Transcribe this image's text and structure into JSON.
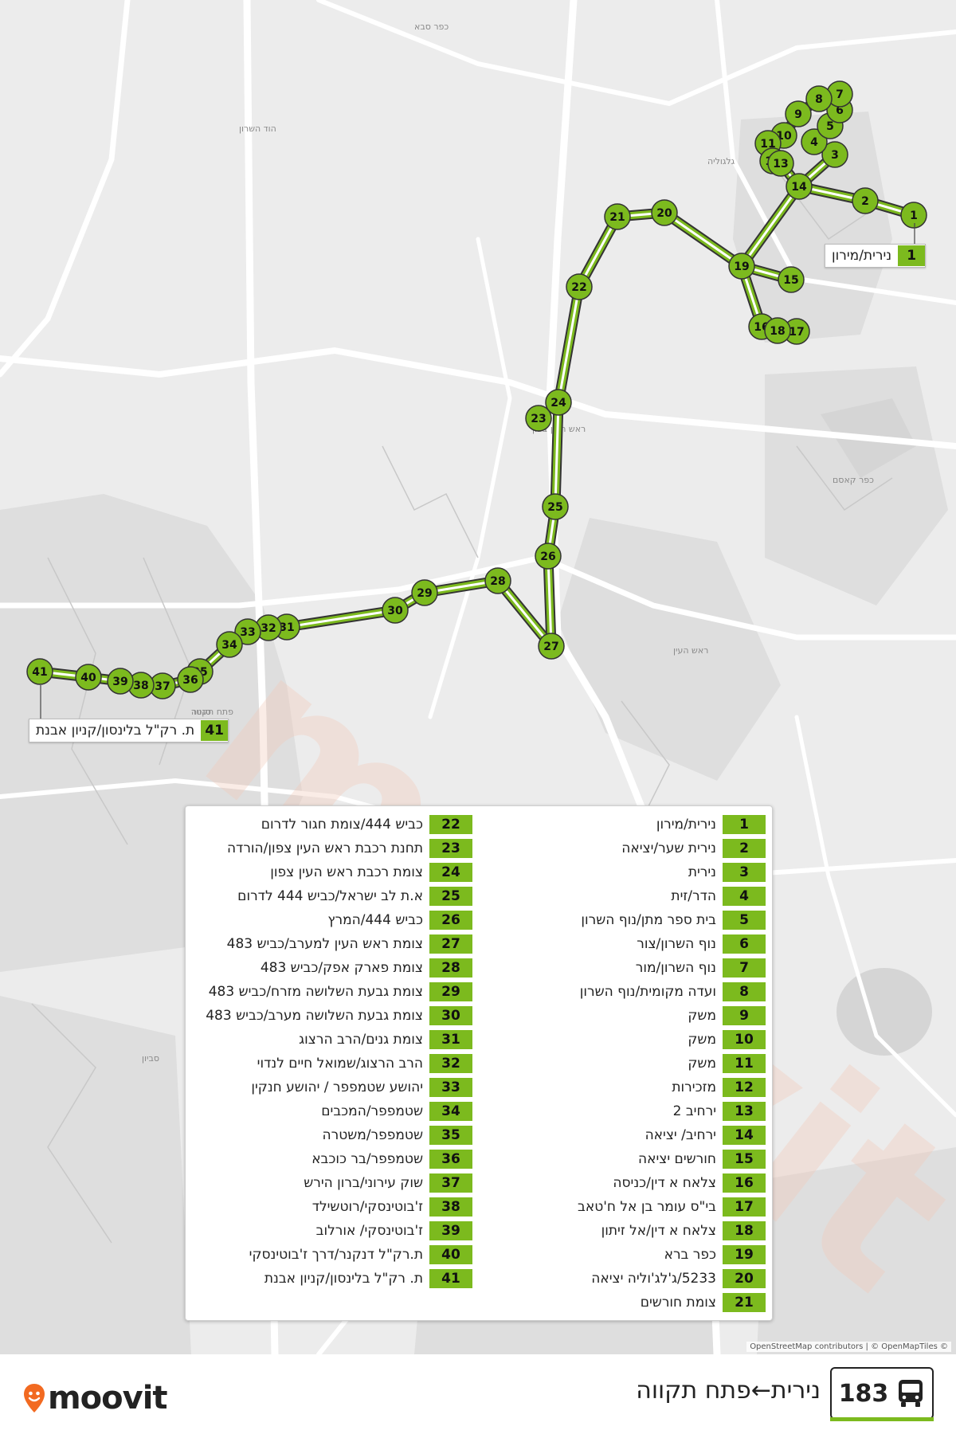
{
  "route": {
    "number": "183",
    "name": "נירית←פתח תקווה",
    "color": "#7cba1e",
    "brand": "moovit",
    "attribution": "OpenStreetMap contributors | © OpenMapTiles ©"
  },
  "map_labels": [
    {
      "text": "גלגוליה",
      "place": "north-east"
    },
    {
      "text": "כפר קאסם",
      "place": "east"
    },
    {
      "text": "ראש העין",
      "place": "center-east"
    },
    {
      "text": "ראש העין צפון",
      "place": "center"
    },
    {
      "text": "פתח תקווה",
      "place": "west"
    },
    {
      "text": "הוד השרון",
      "place": "north-west"
    },
    {
      "text": "כפר סבא",
      "place": "north"
    },
    {
      "text": "סנטר",
      "place": "west"
    },
    {
      "text": "סביון",
      "place": "south-west"
    }
  ],
  "callouts": {
    "start": {
      "num": "1",
      "label": "נירית/מירון"
    },
    "end": {
      "num": "41",
      "label": "ת. רק\"ל בלינסון/קניון אבנת"
    }
  },
  "stops": [
    {
      "num": "1",
      "label": "נירית/מירון"
    },
    {
      "num": "2",
      "label": "נירית שער/יציאה"
    },
    {
      "num": "3",
      "label": "נירית"
    },
    {
      "num": "4",
      "label": "הדר/זית"
    },
    {
      "num": "5",
      "label": "בית ספר מתן/נוף השרון"
    },
    {
      "num": "6",
      "label": "נוף השרון/צור"
    },
    {
      "num": "7",
      "label": "נוף השרון/מור"
    },
    {
      "num": "8",
      "label": "ועדה מקומית/נוף השרון"
    },
    {
      "num": "9",
      "label": "משק"
    },
    {
      "num": "10",
      "label": "משק"
    },
    {
      "num": "11",
      "label": "משק"
    },
    {
      "num": "12",
      "label": "מזכירות"
    },
    {
      "num": "13",
      "label": "ירחיב 2"
    },
    {
      "num": "14",
      "label": "ירחיב/ יציאה"
    },
    {
      "num": "15",
      "label": "חורשים יציאה"
    },
    {
      "num": "16",
      "label": "צלאח א דין/כניסה"
    },
    {
      "num": "17",
      "label": "בי\"ס עומר בן אל ח'טאב"
    },
    {
      "num": "18",
      "label": "צלאח א דין/אל זיתון"
    },
    {
      "num": "19",
      "label": "כפר ברא"
    },
    {
      "num": "20",
      "label": "5233/ג'לג'וליה יציאה"
    },
    {
      "num": "21",
      "label": "צומת חורשים"
    },
    {
      "num": "22",
      "label": "כביש 444/צומת חגור לדרום"
    },
    {
      "num": "23",
      "label": "תחנת רכבת ראש העין צפון/הורדה"
    },
    {
      "num": "24",
      "label": "צומת רכבת ראש העין צפון"
    },
    {
      "num": "25",
      "label": "א.ת לב ישראל/כביש 444 לדרום"
    },
    {
      "num": "26",
      "label": "כביש 444/המרץ"
    },
    {
      "num": "27",
      "label": "צומת ראש העין למערב/כביש 483"
    },
    {
      "num": "28",
      "label": "צומת פארק אפק/כביש 483"
    },
    {
      "num": "29",
      "label": "צומת גבעת השלושה מזרח/כביש 483"
    },
    {
      "num": "30",
      "label": "צומת גבעת השלושה מערב/כביש 483"
    },
    {
      "num": "31",
      "label": "צומת גנים/הרב הרצוג"
    },
    {
      "num": "32",
      "label": "הרב הרצוג/שמואל חיים לנדוי"
    },
    {
      "num": "33",
      "label": "יהושע שטמפפר / יהושע חנקין"
    },
    {
      "num": "34",
      "label": "שטמפפר/המכבים"
    },
    {
      "num": "35",
      "label": "שטמפפר/משטרה"
    },
    {
      "num": "36",
      "label": "שטמפפר/בר כוכבא"
    },
    {
      "num": "37",
      "label": "שוק עירוני/ברון הירש"
    },
    {
      "num": "38",
      "label": "ז'בוטינסקי/רוטשילד"
    },
    {
      "num": "39",
      "label": "ז'בוטינסקי/ אורלוב"
    },
    {
      "num": "40",
      "label": "ת.רק\"ל דנקנר/דרך ז'בוטינסקי"
    },
    {
      "num": "41",
      "label": "ת. רק\"ל בלינסון/קניון אבנת"
    }
  ]
}
